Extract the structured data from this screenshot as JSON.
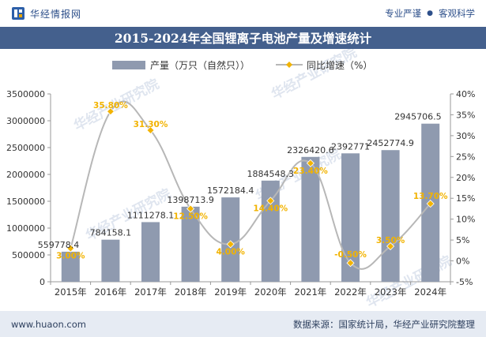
{
  "header": {
    "brand": "华经情报网",
    "tags": [
      "专业严谨",
      "客观科学"
    ]
  },
  "title": "2015-2024年全国锂离子电池产量及增速统计",
  "footer": {
    "url": "www.huaon.com",
    "source": "数据来源：国家统计局，华经产业研究院整理"
  },
  "watermark": "华经产业研究院",
  "colors": {
    "bar": "#8f9aaf",
    "line": "#b7b7b7",
    "marker": "#f2b300",
    "growth_label": "#f2b300",
    "title_bg": "#44608d"
  },
  "chart_data": {
    "type": "bar+line",
    "categories": [
      "2015年",
      "2016年",
      "2017年",
      "2018年",
      "2019年",
      "2020年",
      "2021年",
      "2022年",
      "2023年",
      "2024年"
    ],
    "series": [
      {
        "name": "产量（万只（自然只））",
        "type": "bar",
        "axis": "left",
        "values": [
          559778.4,
          784158.1,
          1111278.1,
          1398713.9,
          1572184.4,
          1884548.3,
          2326420.6,
          2392771,
          2452774.9,
          2945706.5
        ],
        "labels": [
          "559778.4",
          "784158.1",
          "1111278.1",
          "1398713.9",
          "1572184.4",
          "1884548.3",
          "2326420.6",
          "2392771",
          "2452774.9",
          "2945706.5"
        ]
      },
      {
        "name": "同比增速（%）",
        "type": "line",
        "axis": "right",
        "values": [
          3.0,
          35.8,
          31.3,
          12.5,
          4.0,
          14.4,
          23.4,
          -0.5,
          3.5,
          13.7
        ],
        "labels": [
          "3.00%",
          "35.80%",
          "31.30%",
          "12.50%",
          "4.00%",
          "14.40%",
          "23.40%",
          "-0.50%",
          "3.50%",
          "13.70%"
        ]
      }
    ],
    "y_left": {
      "min": 0,
      "max": 3500000,
      "ticks": [
        "0",
        "500000",
        "1000000",
        "1500000",
        "2000000",
        "2500000",
        "3000000",
        "3500000"
      ]
    },
    "y_right": {
      "min": -5,
      "max": 40,
      "ticks": [
        "-5%",
        "0%",
        "5%",
        "10%",
        "15%",
        "20%",
        "25%",
        "30%",
        "35%",
        "40%"
      ]
    },
    "legend_position": "top",
    "grid": false
  }
}
